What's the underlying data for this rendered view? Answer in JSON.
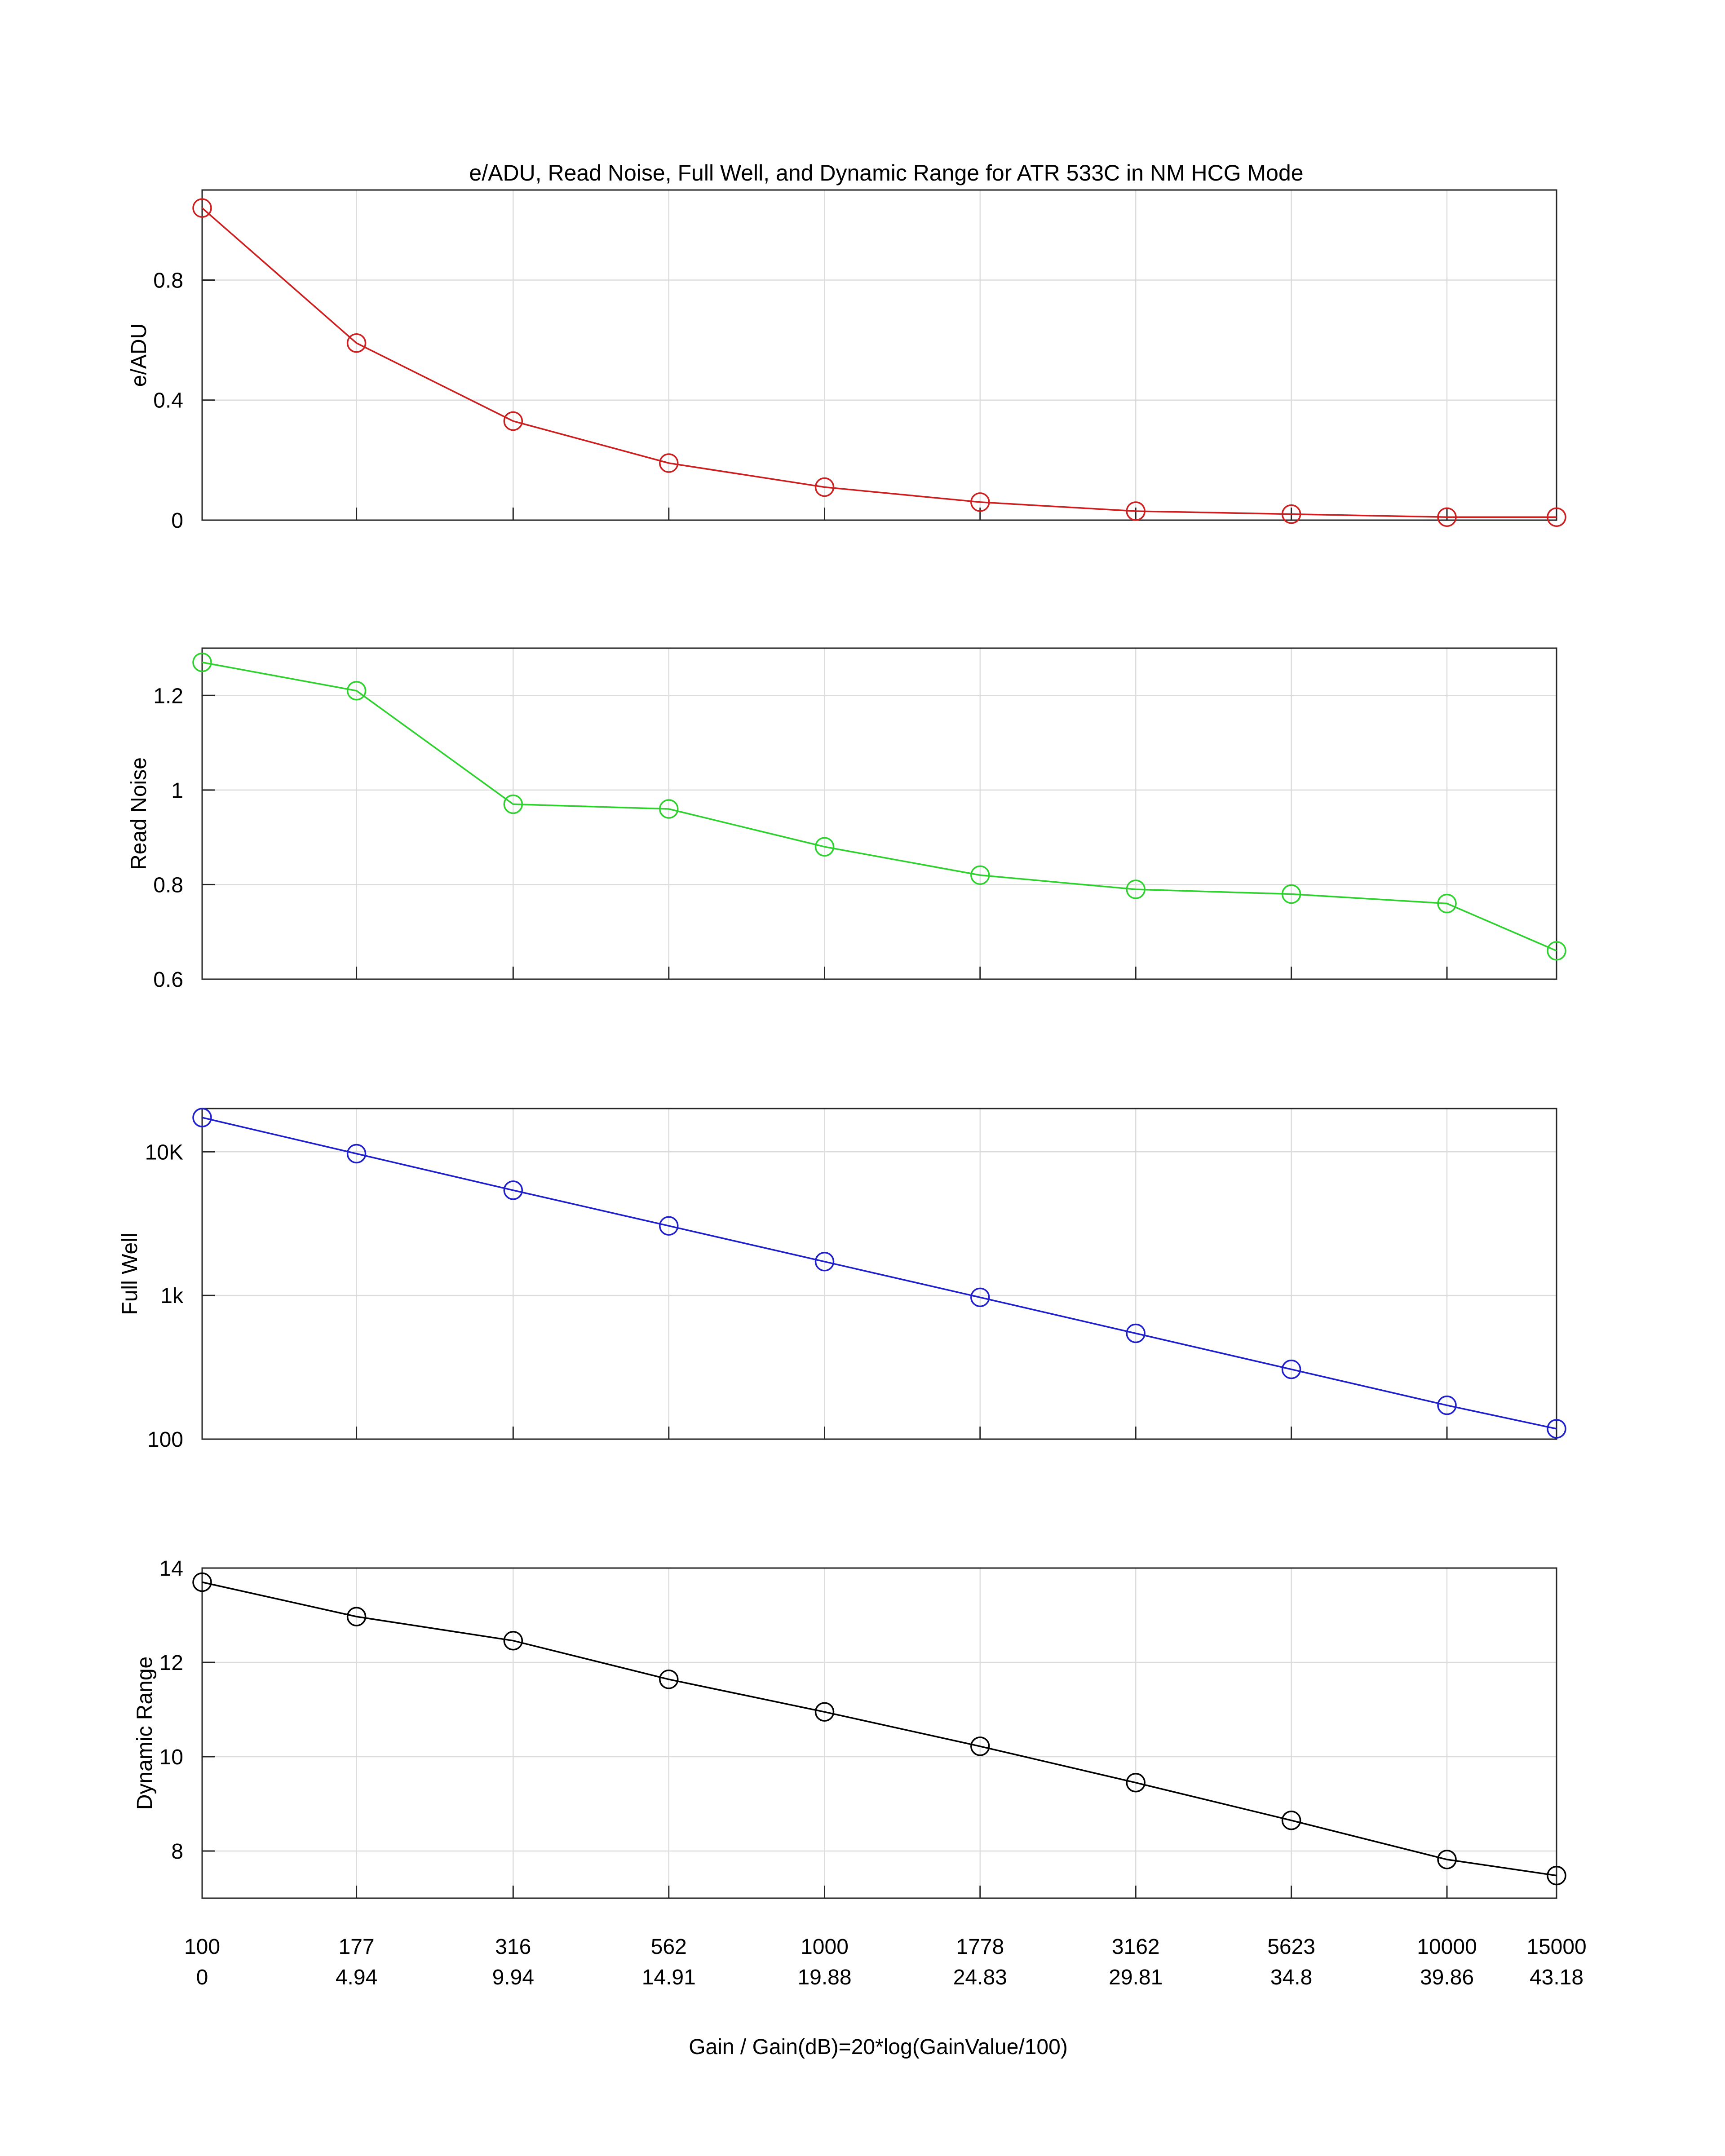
{
  "title": "e/ADU, Read Noise, Full Well, and Dynamic Range for ATR 533C in NM HCG Mode",
  "x_axis": {
    "label": "Gain / Gain(dB)=20*log(GainValue/100)",
    "gain_labels": [
      "100",
      "177",
      "316",
      "562",
      "1000",
      "1778",
      "3162",
      "5623",
      "10000",
      "15000"
    ],
    "db_labels": [
      "0",
      "4.94",
      "9.94",
      "14.91",
      "19.88",
      "24.83",
      "29.81",
      "34.8",
      "39.86",
      "43.18"
    ]
  },
  "chart_data": [
    {
      "type": "line",
      "ylabel": "e/ADU",
      "color": "#cc1f1f",
      "scale": "linear",
      "ylim": [
        0,
        1.1
      ],
      "yticks": [
        0,
        0.4,
        0.8
      ],
      "ytick_labels": [
        "0",
        "0.4",
        "0.8"
      ],
      "x": [
        100,
        177,
        316,
        562,
        1000,
        1778,
        3162,
        5623,
        10000,
        15000
      ],
      "values": [
        1.04,
        0.59,
        0.33,
        0.19,
        0.11,
        0.06,
        0.03,
        0.02,
        0.01,
        0.01
      ]
    },
    {
      "type": "line",
      "ylabel": "Read Noise",
      "color": "#2ed12e",
      "scale": "linear",
      "ylim": [
        0.6,
        1.3
      ],
      "yticks": [
        0.6,
        0.8,
        1.0,
        1.2
      ],
      "ytick_labels": [
        "0.6",
        "0.8",
        "1",
        "1.2"
      ],
      "x": [
        100,
        177,
        316,
        562,
        1000,
        1778,
        3162,
        5623,
        10000,
        15000
      ],
      "values": [
        1.27,
        1.21,
        0.97,
        0.96,
        0.88,
        0.82,
        0.79,
        0.78,
        0.76,
        0.66
      ]
    },
    {
      "type": "line",
      "ylabel": "Full Well",
      "color": "#1f1fcc",
      "scale": "log",
      "ylim": [
        100,
        20000
      ],
      "yticks": [
        100,
        1000,
        10000
      ],
      "ytick_labels": [
        "100",
        "1k",
        "10K"
      ],
      "x": [
        100,
        177,
        316,
        562,
        1000,
        1778,
        3162,
        5623,
        10000,
        15000
      ],
      "values": [
        17300,
        9700,
        5400,
        3050,
        1720,
        970,
        545,
        306,
        172,
        118
      ]
    },
    {
      "type": "line",
      "ylabel": "Dynamic Range",
      "color": "#000000",
      "scale": "linear",
      "ylim": [
        7,
        14
      ],
      "yticks": [
        8,
        10,
        12,
        14
      ],
      "ytick_labels": [
        "8",
        "10",
        "12",
        "14"
      ],
      "x": [
        100,
        177,
        316,
        562,
        1000,
        1778,
        3162,
        5623,
        10000,
        15000
      ],
      "values": [
        13.7,
        12.97,
        12.46,
        11.64,
        10.95,
        10.22,
        9.45,
        8.65,
        7.82,
        7.48
      ]
    }
  ]
}
